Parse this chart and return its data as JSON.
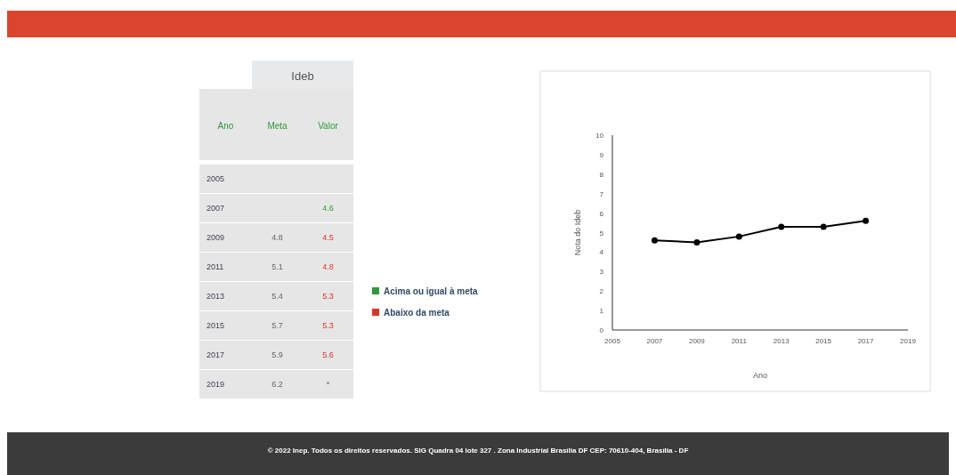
{
  "chart_data": [
    {
      "type": "heatmap",
      "title": "Ideb",
      "ylabel": "Ano",
      "categories": [
        "Meta",
        "Valor"
      ],
      "y_categories": [
        "2005",
        "2007",
        "2009",
        "2011",
        "2013",
        "2015",
        "2017",
        "2019"
      ],
      "cells": [
        [
          null,
          null
        ],
        [
          null,
          4.6
        ],
        [
          4.8,
          4.5
        ],
        [
          5.1,
          4.8
        ],
        [
          5.4,
          5.3
        ],
        [
          5.7,
          5.3
        ],
        [
          5.9,
          5.6
        ],
        [
          6.2,
          null
        ]
      ],
      "cell_labels": [
        [
          null,
          null
        ],
        [
          null,
          "4.6"
        ],
        [
          "4.8",
          "4.5"
        ],
        [
          "5.1",
          "4.8"
        ],
        [
          "5.4",
          "5.3"
        ],
        [
          "5.7",
          "5.3"
        ],
        [
          "5.9",
          "5.6"
        ],
        [
          "6.2",
          "*"
        ]
      ],
      "annotations": [
        "Acima ou igual à meta",
        "Abaixo da meta"
      ]
    },
    {
      "type": "line",
      "xlabel": "Ano",
      "ylabel": "Nota do Ideb",
      "x": [
        2007,
        2009,
        2011,
        2013,
        2015,
        2017
      ],
      "series": [
        {
          "color": "#000000",
          "values": [
            4.6,
            4.5,
            4.8,
            5.3,
            5.3,
            5.6
          ]
        }
      ],
      "xlim": [
        2005,
        2019
      ],
      "xticks": [
        2005,
        2007,
        2009,
        2011,
        2013,
        2015,
        2017,
        2019
      ],
      "ylim": [
        0,
        10
      ],
      "yticks": [
        0,
        1,
        2,
        3,
        4,
        5,
        6,
        7,
        8,
        9,
        10
      ],
      "marker": "circle",
      "line_style": "solid",
      "grid": false,
      "annotations": [
        "© 2022 Inep. Todos os direitos reservados. SIG Quadra 04 lote 327 . Zona Industrial Brasília DF CEP: 70610-404, Brasília - DF"
      ]
    }
  ]
}
